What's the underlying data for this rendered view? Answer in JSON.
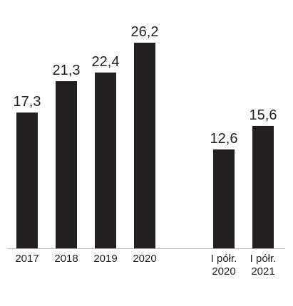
{
  "chart_data": {
    "type": "bar",
    "title": "",
    "xlabel": "",
    "ylabel": "",
    "ylim": [
      0,
      26.2
    ],
    "grid": false,
    "legend": "none",
    "bar_color": "#231f20",
    "categories": [
      [
        "2017"
      ],
      [
        "2018"
      ],
      [
        "2019"
      ],
      [
        "2020"
      ],
      [
        "I półr.",
        "2020"
      ],
      [
        "I półr.",
        "2021"
      ]
    ],
    "values": [
      17.3,
      21.3,
      22.4,
      26.2,
      12.6,
      15.6
    ],
    "value_labels": [
      "17,3",
      "21,3",
      "22,4",
      "26,2",
      "12,6",
      "15,6"
    ]
  }
}
